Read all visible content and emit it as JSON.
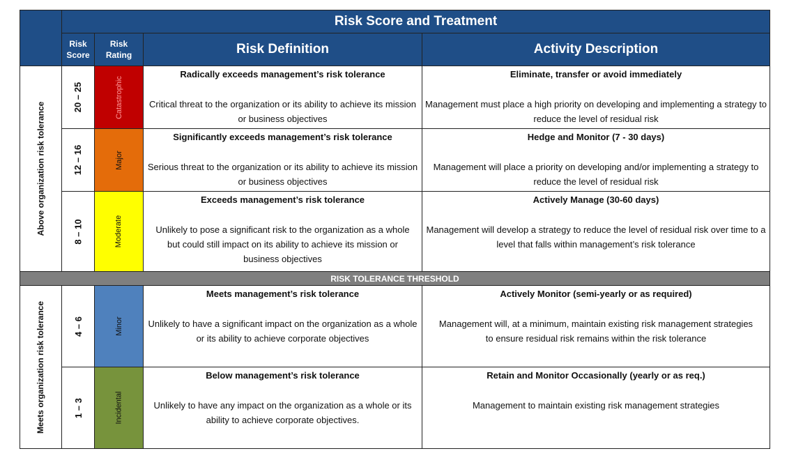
{
  "title": "Risk Score and Treatment",
  "headers": {
    "score": [
      "Risk",
      "Score"
    ],
    "rating": [
      "Risk",
      "Rating"
    ],
    "definition": "Risk Definition",
    "activity": "Activity Description"
  },
  "groups": [
    {
      "label": "Above organization risk tolerance"
    },
    {
      "label": "Meets organization risk tolerance"
    }
  ],
  "threshold": "RISK TOLERANCE THRESHOLD",
  "rows": [
    {
      "score": "20 – 25",
      "rating": "Catastrophic",
      "color": "#c00000",
      "rating_text_color": "#ff9999",
      "def_title": "Radically exceeds management’s risk tolerance",
      "def_body": "Critical threat to the organization or its ability to achieve its mission or business objectives",
      "act_title": "Eliminate, transfer or avoid immediately",
      "act_body": "Management must place a high priority on developing and implementing a strategy to reduce the level of residual risk"
    },
    {
      "score": "12 – 16",
      "rating": "Major",
      "color": "#e46c0a",
      "rating_text_color": "#111111",
      "def_title": "Significantly exceeds management’s risk tolerance",
      "def_body": "Serious threat to the organization or its ability to achieve its mission or business objectives",
      "act_title": "Hedge and Monitor (7 - 30 days)",
      "act_body": "Management will place a priority on developing and/or implementing a strategy to reduce the level of residual risk"
    },
    {
      "score": "8 – 10",
      "rating": "Moderate",
      "color": "#ffff00",
      "rating_text_color": "#111111",
      "def_title": "Exceeds management’s risk tolerance",
      "def_body": "Unlikely to pose a significant risk to the organization as a whole but could still impact on its ability to achieve its mission or business objectives",
      "act_title": "Actively Manage (30-60 days)",
      "act_body": "Management will develop a strategy to reduce the level of residual risk over time to a level that falls within management’s risk tolerance"
    },
    {
      "score": "4 – 6",
      "rating": "Minor",
      "color": "#4f81bd",
      "rating_text_color": "#111111",
      "def_title": "Meets management’s risk tolerance",
      "def_body": "Unlikely to have a significant impact on the organization as a whole or its ability to achieve corporate objectives",
      "act_title": "Actively Monitor (semi-yearly or as required)",
      "act_body": "Management will, at a minimum, maintain existing risk management strategies to ensure residual risk remains within the risk tolerance"
    },
    {
      "score": "1 – 3",
      "rating": "Incidental",
      "color": "#77933c",
      "rating_text_color": "#111111",
      "def_title": "Below management’s risk tolerance",
      "def_body": "Unlikely to have any impact on the organization as a whole or its ability to achieve corporate objectives.",
      "act_title": "Retain and Monitor Occasionally (yearly or as req.)",
      "act_body": "Management to maintain existing risk management strategies"
    }
  ]
}
